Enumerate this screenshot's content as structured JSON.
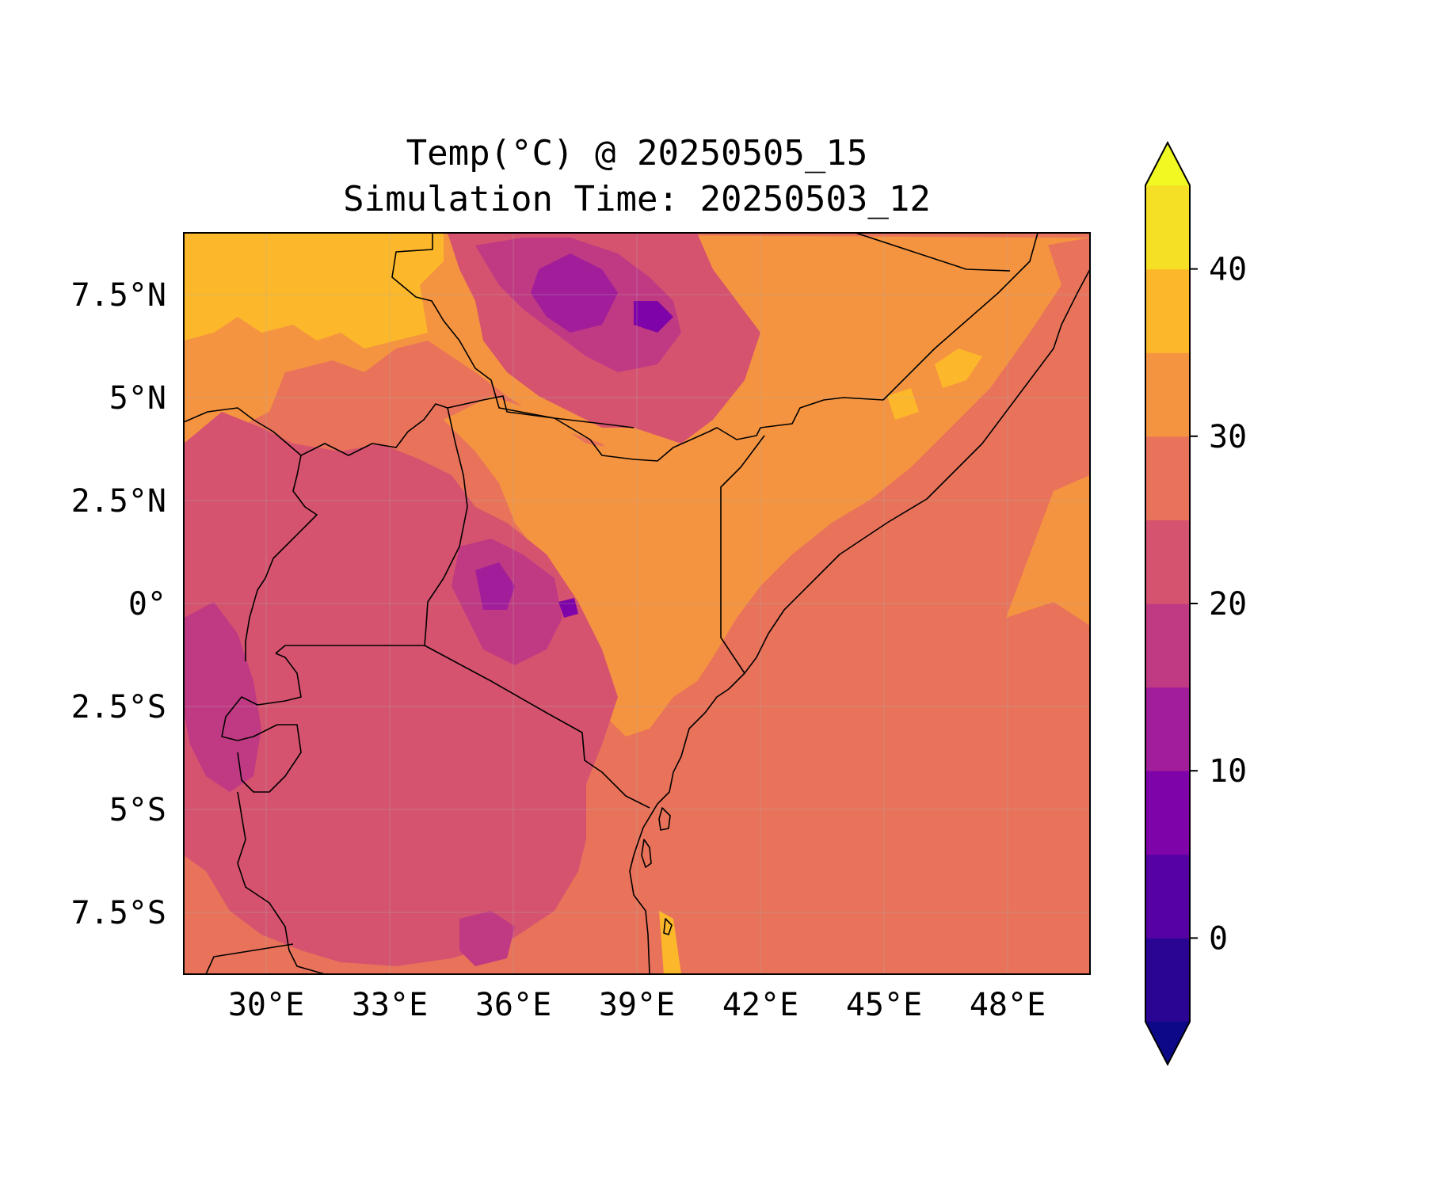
{
  "title": {
    "line1": "Temp(°C) @ 20250505_15",
    "line2": "Simulation Time: 20250503_12"
  },
  "map": {
    "lon_range": [
      28,
      50
    ],
    "lat_range": [
      -9,
      9
    ],
    "lon_ticks": [
      {
        "value": 30,
        "label": "30°E"
      },
      {
        "value": 33,
        "label": "33°E"
      },
      {
        "value": 36,
        "label": "36°E"
      },
      {
        "value": 39,
        "label": "39°E"
      },
      {
        "value": 42,
        "label": "42°E"
      },
      {
        "value": 45,
        "label": "45°E"
      },
      {
        "value": 48,
        "label": "48°E"
      }
    ],
    "lat_ticks": [
      {
        "value": 7.5,
        "label": "7.5°N"
      },
      {
        "value": 5,
        "label": "5°N"
      },
      {
        "value": 2.5,
        "label": "2.5°N"
      },
      {
        "value": 0,
        "label": "0°"
      },
      {
        "value": -2.5,
        "label": "2.5°S"
      },
      {
        "value": -5,
        "label": "5°S"
      },
      {
        "value": -7.5,
        "label": "7.5°S"
      }
    ],
    "background_color": "#e8735a"
  },
  "colorbar": {
    "range": [
      -5,
      45
    ],
    "levels": [
      {
        "from": -5,
        "to": 0,
        "color": "#2a0593"
      },
      {
        "from": 0,
        "to": 5,
        "color": "#5601a4"
      },
      {
        "from": 5,
        "to": 10,
        "color": "#7e03a8"
      },
      {
        "from": 10,
        "to": 15,
        "color": "#a21d9a"
      },
      {
        "from": 15,
        "to": 20,
        "color": "#c03a83"
      },
      {
        "from": 20,
        "to": 25,
        "color": "#d5536f"
      },
      {
        "from": 25,
        "to": 30,
        "color": "#e8735a"
      },
      {
        "from": 30,
        "to": 35,
        "color": "#f59440"
      },
      {
        "from": 35,
        "to": 40,
        "color": "#fcb82a"
      },
      {
        "from": 40,
        "to": 45,
        "color": "#f5e026"
      }
    ],
    "under_color": "#0d0887",
    "over_color": "#f0f921",
    "ticks": [
      {
        "value": 0,
        "label": "0"
      },
      {
        "value": 10,
        "label": "10"
      },
      {
        "value": 20,
        "label": "20"
      },
      {
        "value": 30,
        "label": "30"
      },
      {
        "value": 40,
        "label": "40"
      }
    ]
  }
}
